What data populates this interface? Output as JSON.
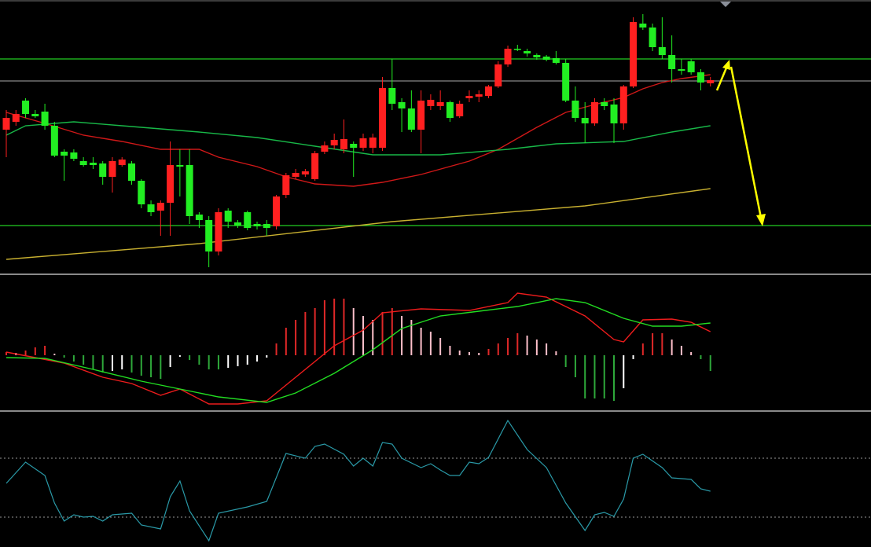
{
  "chart_data": [
    {
      "type": "candlestick",
      "ylim": [
        0,
        350
      ],
      "up_color": "#ff2020",
      "down_color": "#22ee22",
      "ohlc": [
        [
          185,
          210,
          150,
          200
        ],
        [
          195,
          210,
          190,
          205
        ],
        [
          222,
          225,
          200,
          205
        ],
        [
          205,
          210,
          200,
          202
        ],
        [
          208,
          218,
          185,
          190
        ],
        [
          190,
          195,
          150,
          152
        ],
        [
          157,
          160,
          120,
          152
        ],
        [
          156,
          160,
          145,
          148
        ],
        [
          145,
          150,
          138,
          140
        ],
        [
          143,
          150,
          135,
          140
        ],
        [
          142,
          145,
          115,
          125
        ],
        [
          125,
          150,
          105,
          145
        ],
        [
          140,
          150,
          138,
          147
        ],
        [
          142,
          145,
          115,
          120
        ],
        [
          120,
          122,
          85,
          90
        ],
        [
          90,
          95,
          75,
          80
        ],
        [
          82,
          95,
          50,
          92
        ],
        [
          92,
          170,
          50,
          140
        ],
        [
          140,
          160,
          100,
          138
        ],
        [
          140,
          160,
          65,
          75
        ],
        [
          77,
          80,
          60,
          70
        ],
        [
          70,
          75,
          10,
          30
        ],
        [
          30,
          85,
          25,
          80
        ],
        [
          82,
          85,
          60,
          68
        ],
        [
          67,
          70,
          60,
          63
        ],
        [
          80,
          82,
          57,
          60
        ],
        [
          65,
          68,
          58,
          62
        ],
        [
          65,
          70,
          50,
          60
        ],
        [
          62,
          102,
          58,
          100
        ],
        [
          102,
          130,
          98,
          127
        ],
        [
          125,
          135,
          122,
          130
        ],
        [
          128,
          135,
          125,
          132
        ],
        [
          122,
          158,
          120,
          155
        ],
        [
          157,
          170,
          154,
          165
        ],
        [
          165,
          180,
          160,
          172
        ],
        [
          160,
          198,
          155,
          173
        ],
        [
          167,
          170,
          125,
          162
        ],
        [
          162,
          180,
          158,
          174
        ],
        [
          162,
          180,
          155,
          175
        ],
        [
          162,
          252,
          158,
          238
        ],
        [
          238,
          275,
          210,
          218
        ],
        [
          220,
          225,
          182,
          212
        ],
        [
          212,
          235,
          182,
          185
        ],
        [
          185,
          235,
          155,
          222
        ],
        [
          215,
          230,
          210,
          223
        ],
        [
          215,
          235,
          210,
          220
        ],
        [
          220,
          222,
          195,
          200
        ],
        [
          202,
          222,
          200,
          218
        ],
        [
          225,
          235,
          220,
          228
        ],
        [
          227,
          235,
          220,
          230
        ],
        [
          228,
          242,
          225,
          240
        ],
        [
          240,
          272,
          238,
          268
        ],
        [
          268,
          292,
          265,
          288
        ],
        [
          288,
          293,
          285,
          287
        ],
        [
          285,
          288,
          278,
          282
        ],
        [
          280,
          282,
          274,
          277
        ],
        [
          278,
          280,
          272,
          274
        ],
        [
          276,
          285,
          268,
          270
        ],
        [
          270,
          275,
          220,
          222
        ],
        [
          222,
          240,
          195,
          200
        ],
        [
          200,
          220,
          168,
          193
        ],
        [
          193,
          225,
          190,
          220
        ],
        [
          220,
          225,
          210,
          215
        ],
        [
          217,
          225,
          168,
          193
        ],
        [
          193,
          242,
          185,
          240
        ],
        [
          240,
          328,
          238,
          322
        ],
        [
          320,
          332,
          312,
          315
        ],
        [
          315,
          320,
          285,
          290
        ],
        [
          290,
          328,
          275,
          280
        ],
        [
          280,
          305,
          245,
          262
        ],
        [
          262,
          275,
          255,
          260
        ],
        [
          272,
          275,
          255,
          258
        ],
        [
          258,
          262,
          235,
          245
        ],
        [
          244,
          252,
          240,
          248
        ]
      ],
      "ma": [
        {
          "color": "#d01818",
          "x": [
            0,
            4,
            8,
            12,
            16,
            20,
            22,
            26,
            29,
            32,
            36,
            39,
            43,
            48,
            51,
            55,
            58,
            61,
            64,
            66,
            68,
            70,
            73
          ],
          "values": [
            207,
            193,
            178,
            170,
            160,
            160,
            150,
            138,
            125,
            116,
            113,
            118,
            128,
            145,
            160,
            188,
            207,
            217,
            226,
            237,
            245,
            250,
            255
          ]
        },
        {
          "color": "#18b848",
          "x": [
            0,
            2,
            7,
            12,
            20,
            26,
            32,
            38,
            45,
            52,
            57,
            64,
            69,
            73
          ],
          "values": [
            178,
            190,
            195,
            190,
            182,
            175,
            164,
            153,
            153,
            160,
            167,
            170,
            182,
            190
          ]
        },
        {
          "color": "#c8b030",
          "x": [
            0,
            20,
            40,
            60,
            73
          ],
          "values": [
            20,
            40,
            68,
            88,
            110
          ]
        }
      ],
      "hlines": [
        {
          "value": 275,
          "color": "#22cc22"
        },
        {
          "value": 247,
          "color": "#888888"
        },
        {
          "value": 63,
          "color": "#22cc22"
        }
      ]
    },
    {
      "type": "macd",
      "ylim": [
        -70,
        102
      ],
      "histogram": [
        4,
        3,
        6,
        10,
        12,
        2,
        -3,
        -8,
        -12,
        -18,
        -22,
        -20,
        -18,
        -22,
        -26,
        -28,
        -30,
        -15,
        -2,
        -6,
        -12,
        -18,
        -18,
        -16,
        -14,
        -12,
        -8,
        -3,
        15,
        35,
        45,
        55,
        60,
        70,
        72,
        72,
        60,
        50,
        45,
        55,
        60,
        50,
        45,
        35,
        30,
        22,
        12,
        6,
        4,
        3,
        8,
        15,
        22,
        28,
        25,
        20,
        15,
        5,
        -15,
        -28,
        -55,
        -55,
        -55,
        -58,
        -42,
        -5,
        15,
        28,
        28,
        20,
        12,
        4,
        -5,
        -20
      ],
      "hist_colors": [
        "#e02828",
        "#ffc0cb",
        "#2ea83a",
        "#ffffff"
      ],
      "lines": [
        {
          "color": "#ee1c1c",
          "x": [
            0,
            3,
            6,
            10,
            13,
            16,
            18,
            21,
            24,
            27,
            30,
            34,
            37,
            39,
            43,
            48,
            52,
            53,
            56,
            60,
            63,
            64,
            66,
            69,
            71,
            73
          ],
          "values": [
            4,
            -3,
            -10,
            -28,
            -36,
            -51,
            -43,
            -62,
            -62,
            -58,
            -28,
            12,
            32,
            54,
            59,
            57,
            67,
            79,
            74,
            50,
            20,
            17,
            45,
            46,
            42,
            30
          ]
        },
        {
          "color": "#22dd22",
          "x": [
            0,
            4,
            9,
            14,
            18,
            22,
            27,
            30,
            34,
            38,
            41,
            45,
            49,
            53,
            57,
            60,
            64,
            67,
            70,
            73
          ],
          "values": [
            -3,
            -4,
            -18,
            -33,
            -43,
            -53,
            -60,
            -48,
            -23,
            7,
            34,
            50,
            56,
            62,
            72,
            67,
            47,
            37,
            37,
            41
          ]
        }
      ]
    },
    {
      "type": "line",
      "ylim": [
        0,
        170
      ],
      "levels": [
        37,
        112
      ],
      "color": "#2a9aa8",
      "x": [
        0,
        2,
        4,
        5,
        6,
        7,
        8,
        9,
        10,
        11,
        13,
        14,
        16,
        17,
        18,
        19,
        21,
        22,
        25,
        27,
        29,
        31,
        32,
        33,
        35,
        36,
        37,
        38,
        39,
        40,
        41,
        43,
        44,
        45,
        46,
        47,
        48,
        49,
        50,
        52,
        54,
        56,
        58,
        60,
        61,
        62,
        63,
        64,
        65,
        66,
        68,
        69,
        71,
        72,
        73
      ],
      "values": [
        80,
        107,
        90,
        55,
        32,
        40,
        37,
        38,
        32,
        40,
        42,
        27,
        22,
        63,
        83,
        45,
        7,
        42,
        50,
        57,
        118,
        112,
        127,
        130,
        117,
        102,
        112,
        102,
        132,
        130,
        112,
        100,
        105,
        97,
        90,
        90,
        107,
        105,
        113,
        160,
        123,
        100,
        55,
        20,
        40,
        43,
        38,
        60,
        112,
        117,
        100,
        87,
        85,
        73,
        70
      ]
    }
  ]
}
